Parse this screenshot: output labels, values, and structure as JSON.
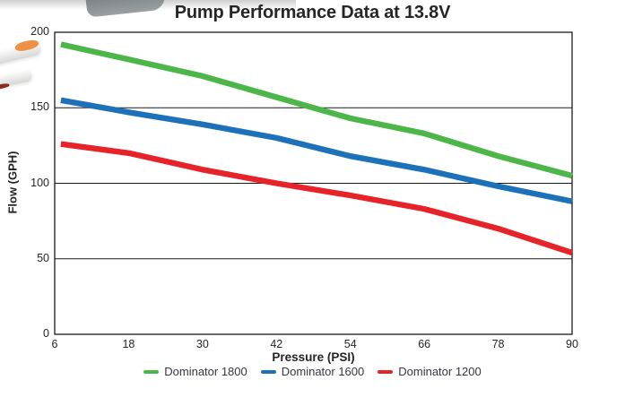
{
  "page": {
    "background": "#ffffff"
  },
  "colors": {
    "title_text": "#262626",
    "axis_line": "#1a1a1a",
    "tick_text": "#242424",
    "legend_text": "#333740",
    "green_series": "#4cb748",
    "blue_series": "#1d71b8",
    "red_series": "#e52329"
  },
  "chart_data": {
    "type": "line",
    "title": "Pump Performance Data at 13.8V",
    "xlabel": "Pressure (PSI)",
    "ylabel": "Flow (GPH)",
    "xlim": [
      6,
      90
    ],
    "ylim": [
      0,
      200
    ],
    "x_ticks": [
      6,
      18,
      30,
      42,
      54,
      66,
      78,
      90
    ],
    "y_ticks": [
      0,
      50,
      100,
      150,
      200
    ],
    "grid": "horizontal gridlines at 50, 100, 150; full rectangular frame",
    "legend_position": "bottom-center",
    "series": [
      {
        "name": "Dominator 1800",
        "color": "#4cb748",
        "x": [
          7,
          18,
          30,
          42,
          54,
          66,
          78,
          90
        ],
        "values": [
          192,
          182,
          171,
          157,
          143,
          133,
          118,
          105
        ]
      },
      {
        "name": "Dominator 1600",
        "color": "#1d71b8",
        "x": [
          7,
          18,
          30,
          42,
          54,
          66,
          78,
          90
        ],
        "values": [
          155,
          147,
          139,
          130,
          118,
          109,
          98,
          88
        ]
      },
      {
        "name": "Dominator 1200",
        "color": "#e52329",
        "x": [
          7,
          18,
          30,
          42,
          54,
          66,
          78,
          90
        ],
        "values": [
          126,
          120,
          109,
          100,
          92,
          83,
          70,
          54
        ]
      }
    ]
  }
}
